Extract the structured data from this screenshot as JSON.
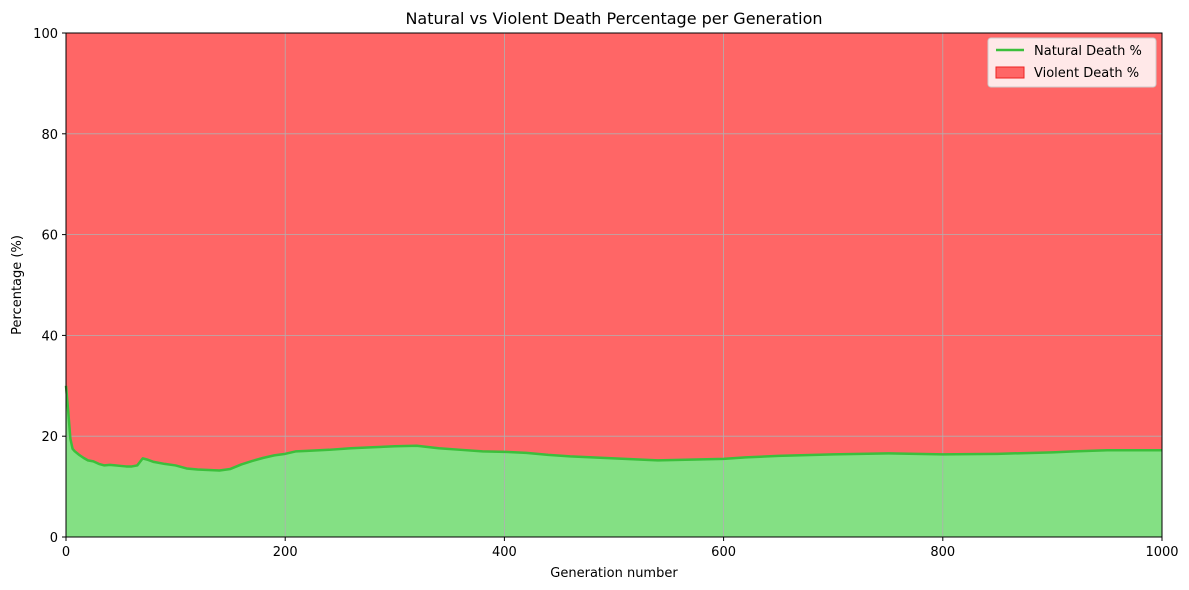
{
  "chart_data": {
    "type": "area",
    "title": "Natural vs Violent Death Percentage per Generation",
    "xlabel": "Generation number",
    "ylabel": "Percentage (%)",
    "xlim": [
      0,
      1000
    ],
    "ylim": [
      0,
      100
    ],
    "x_ticks": [
      "0",
      "200",
      "400",
      "600",
      "800",
      "1000"
    ],
    "y_ticks": [
      "0",
      "20",
      "40",
      "60",
      "80",
      "100"
    ],
    "grid": true,
    "legend_position": "top-right",
    "series": [
      {
        "name": "Natural Death %",
        "style": "line + filled area below",
        "line_color": "#3cbf3c",
        "fill_color": "#84e084",
        "x": [
          0,
          2,
          4,
          6,
          8,
          12,
          16,
          20,
          25,
          30,
          35,
          40,
          45,
          50,
          55,
          60,
          65,
          70,
          75,
          80,
          90,
          100,
          110,
          120,
          130,
          140,
          150,
          160,
          170,
          180,
          190,
          200,
          210,
          220,
          240,
          260,
          280,
          300,
          320,
          340,
          360,
          380,
          400,
          420,
          440,
          460,
          480,
          500,
          520,
          540,
          560,
          580,
          600,
          620,
          650,
          700,
          750,
          800,
          850,
          900,
          920,
          950,
          1000
        ],
        "y": [
          30.0,
          25.0,
          19.5,
          17.5,
          17.0,
          16.3,
          15.7,
          15.2,
          15.0,
          14.5,
          14.2,
          14.3,
          14.2,
          14.1,
          14.0,
          14.0,
          14.2,
          15.6,
          15.3,
          14.9,
          14.5,
          14.2,
          13.6,
          13.4,
          13.3,
          13.2,
          13.5,
          14.4,
          15.1,
          15.7,
          16.2,
          16.5,
          17.0,
          17.1,
          17.3,
          17.6,
          17.8,
          18.0,
          18.1,
          17.6,
          17.3,
          17.0,
          16.9,
          16.7,
          16.3,
          16.0,
          15.8,
          15.6,
          15.4,
          15.2,
          15.3,
          15.4,
          15.5,
          15.8,
          16.1,
          16.4,
          16.6,
          16.4,
          16.5,
          16.8,
          17.0,
          17.2,
          17.2
        ]
      },
      {
        "name": "Violent Death %",
        "style": "filled area stacked to 100",
        "fill_color": "#ff6666",
        "x": [
          0,
          2,
          4,
          6,
          8,
          12,
          16,
          20,
          25,
          30,
          35,
          40,
          45,
          50,
          55,
          60,
          65,
          70,
          75,
          80,
          90,
          100,
          110,
          120,
          130,
          140,
          150,
          160,
          170,
          180,
          190,
          200,
          210,
          220,
          240,
          260,
          280,
          300,
          320,
          340,
          360,
          380,
          400,
          420,
          440,
          460,
          480,
          500,
          520,
          540,
          560,
          580,
          600,
          620,
          650,
          700,
          750,
          800,
          850,
          900,
          920,
          950,
          1000
        ],
        "y": [
          70.0,
          75.0,
          80.5,
          82.5,
          83.0,
          83.7,
          84.3,
          84.8,
          85.0,
          85.5,
          85.8,
          85.7,
          85.8,
          85.9,
          86.0,
          86.0,
          85.8,
          84.4,
          84.7,
          85.1,
          85.5,
          85.8,
          86.4,
          86.6,
          86.7,
          86.8,
          86.5,
          85.6,
          84.9,
          84.3,
          83.8,
          83.5,
          83.0,
          82.9,
          82.7,
          82.4,
          82.2,
          82.0,
          81.9,
          82.4,
          82.7,
          83.0,
          83.1,
          83.3,
          83.7,
          84.0,
          84.2,
          84.4,
          84.6,
          84.8,
          84.7,
          84.6,
          84.5,
          84.2,
          83.9,
          83.6,
          83.4,
          83.6,
          83.5,
          83.2,
          83.0,
          82.8,
          82.8
        ]
      }
    ]
  }
}
